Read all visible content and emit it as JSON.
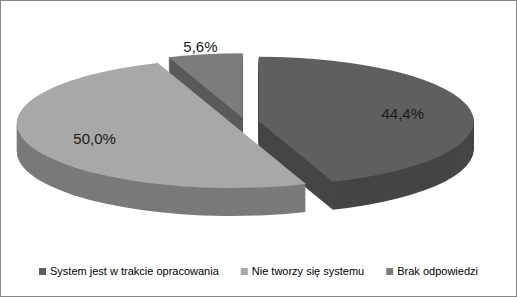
{
  "chart_data": {
    "type": "pie",
    "categories": [
      "System jest w trakcie opracowania",
      "Nie tworzy się systemu",
      "Brak odpowiedzi"
    ],
    "values": [
      44.4,
      50.0,
      5.6
    ],
    "value_labels": [
      "44,4%",
      "50,0%",
      "5,6%"
    ],
    "colors": [
      "#5f5f5f",
      "#a8a8a8",
      "#7c7c7c"
    ],
    "data_labels": true,
    "legend": "bottom"
  }
}
